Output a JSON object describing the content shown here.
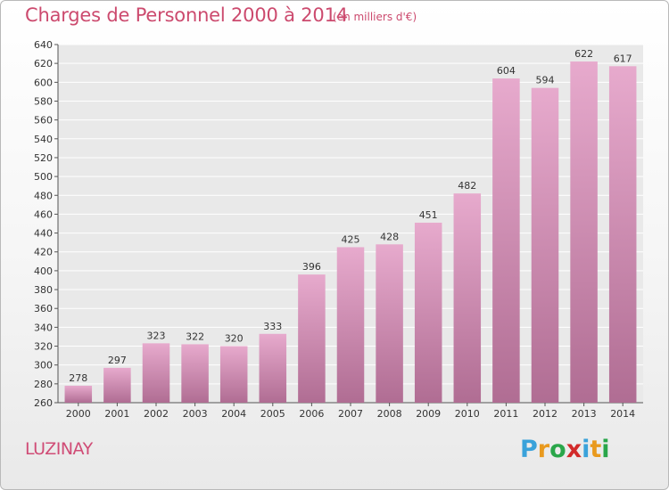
{
  "header": {
    "title": "Charges de Personnel 2000 à 2014",
    "subtitle": "(en milliers d'€)"
  },
  "footer": {
    "location": "LUZINAY",
    "logo_text": "Proxiti",
    "logo_letters": [
      {
        "char": "P",
        "color": "#3aa2da"
      },
      {
        "char": "r",
        "color": "#e99a1e"
      },
      {
        "char": "o",
        "color": "#2aa64a"
      },
      {
        "char": "x",
        "color": "#d22a2a"
      },
      {
        "char": "i",
        "color": "#3aa2da"
      },
      {
        "char": "t",
        "color": "#e99a1e"
      },
      {
        "char": "i",
        "color": "#2aa64a"
      }
    ]
  },
  "colors": {
    "title": "#cc4a6e",
    "bar_top": "#e7aacd",
    "bar_bottom": "#b06d93",
    "plot_background": "#e9e9e9",
    "grid": "#ffffff"
  },
  "chart_data": {
    "type": "bar",
    "title": "Charges de Personnel 2000 à 2014",
    "subtitle": "(en milliers d'€)",
    "xlabel": "",
    "ylabel": "",
    "categories": [
      "2000",
      "2001",
      "2002",
      "2003",
      "2004",
      "2005",
      "2006",
      "2007",
      "2008",
      "2009",
      "2010",
      "2011",
      "2012",
      "2013",
      "2014"
    ],
    "values": [
      278,
      297,
      323,
      322,
      320,
      333,
      396,
      425,
      428,
      451,
      482,
      604,
      594,
      622,
      617
    ],
    "ylim": [
      260,
      640
    ],
    "yticks": [
      260,
      280,
      300,
      320,
      340,
      360,
      380,
      400,
      420,
      440,
      460,
      480,
      500,
      520,
      540,
      560,
      580,
      600,
      620,
      640
    ],
    "grid": true,
    "data_labels": true,
    "legend": "none"
  }
}
